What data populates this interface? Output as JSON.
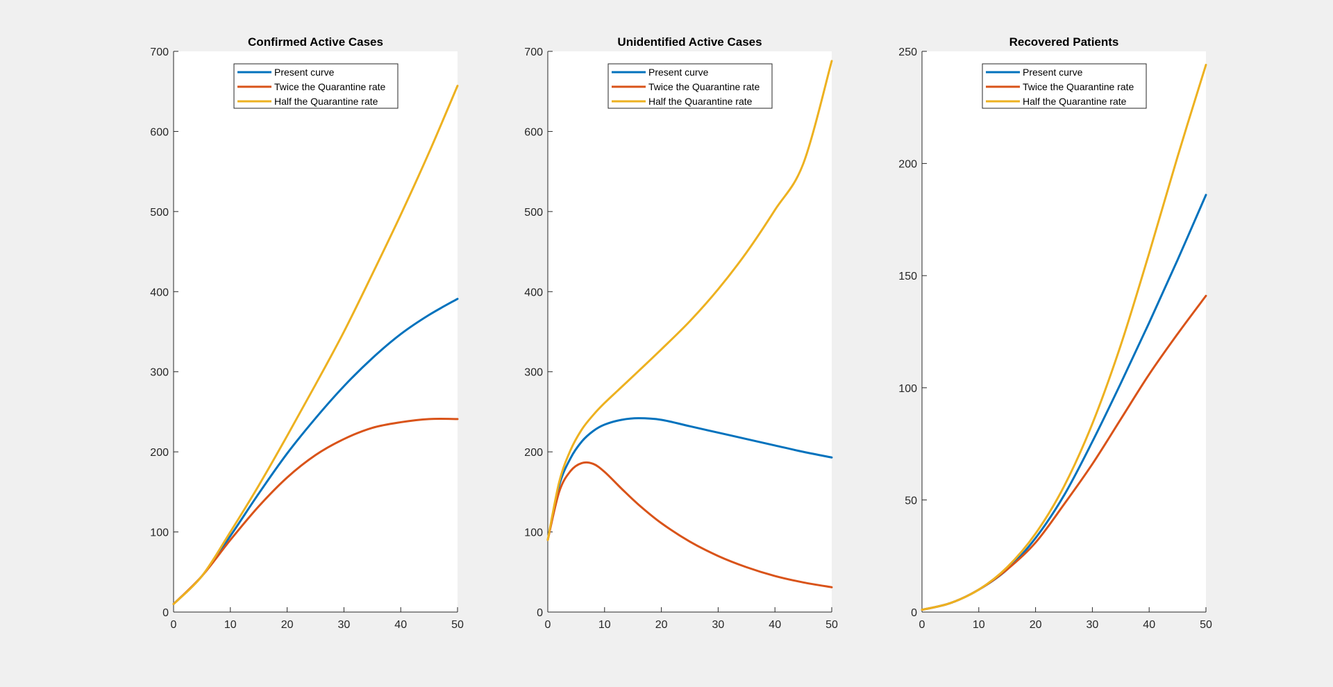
{
  "figure": {
    "background": "#f0f0f0"
  },
  "chart_data": [
    {
      "type": "line",
      "title": "Confirmed Active Cases",
      "xlabel": "",
      "ylabel": "",
      "xlim": [
        0,
        50
      ],
      "ylim": [
        0,
        700
      ],
      "xticks": [
        "0",
        "10",
        "20",
        "30",
        "40",
        "50"
      ],
      "yticks": [
        "0",
        "100",
        "200",
        "300",
        "400",
        "500",
        "600",
        "700"
      ],
      "grid": false,
      "legend": "top-center",
      "x": [
        0,
        5,
        10,
        15,
        20,
        25,
        30,
        35,
        40,
        45,
        50
      ],
      "series": [
        {
          "name": "Present curve",
          "color": "#0072BD",
          "values": [
            10,
            45,
            95,
            148,
            198,
            242,
            282,
            317,
            347,
            371,
            391
          ]
        },
        {
          "name": "Twice the Quarantine rate",
          "color": "#D95319",
          "values": [
            10,
            45,
            90,
            132,
            168,
            196,
            216,
            230,
            237,
            241,
            241
          ]
        },
        {
          "name": "Half the Quarantine rate",
          "color": "#EDB120",
          "values": [
            10,
            45,
            100,
            158,
            220,
            284,
            350,
            422,
            496,
            574,
            657
          ]
        }
      ]
    },
    {
      "type": "line",
      "title": "Unidentified Active Cases",
      "xlabel": "",
      "ylabel": "",
      "xlim": [
        0,
        50
      ],
      "ylim": [
        0,
        700
      ],
      "xticks": [
        "0",
        "10",
        "20",
        "30",
        "40",
        "50"
      ],
      "yticks": [
        "0",
        "100",
        "200",
        "300",
        "400",
        "500",
        "600",
        "700"
      ],
      "grid": false,
      "legend": "top-center",
      "x": [
        0,
        2,
        4,
        6,
        8,
        10,
        13,
        16,
        20,
        25,
        30,
        35,
        40,
        45,
        50
      ],
      "series": [
        {
          "name": "Present curve",
          "color": "#0072BD",
          "values": [
            90,
            158,
            192,
            213,
            226,
            234,
            240,
            242,
            240,
            232,
            224,
            216,
            208,
            200,
            193
          ]
        },
        {
          "name": "Twice the Quarantine rate",
          "color": "#D95319",
          "values": [
            90,
            150,
            176,
            186,
            185,
            175,
            154,
            134,
            111,
            88,
            70,
            56,
            45,
            37,
            31
          ]
        },
        {
          "name": "Half the Quarantine rate",
          "color": "#EDB120",
          "values": [
            90,
            162,
            202,
            228,
            246,
            261,
            281,
            301,
            328,
            363,
            403,
            449,
            502,
            560,
            688
          ]
        }
      ]
    },
    {
      "type": "line",
      "title": "Recovered Patients",
      "xlabel": "",
      "ylabel": "",
      "xlim": [
        0,
        50
      ],
      "ylim": [
        0,
        250
      ],
      "xticks": [
        "0",
        "10",
        "20",
        "30",
        "40",
        "50"
      ],
      "yticks": [
        "0",
        "50",
        "100",
        "150",
        "200",
        "250"
      ],
      "grid": false,
      "legend": "top-center",
      "x": [
        0,
        5,
        10,
        15,
        20,
        25,
        30,
        35,
        40,
        45,
        50
      ],
      "series": [
        {
          "name": "Present curve",
          "color": "#0072BD",
          "values": [
            1,
            4,
            10,
            19,
            33,
            52,
            76,
            102,
            129,
            157,
            186
          ]
        },
        {
          "name": "Twice the Quarantine rate",
          "color": "#D95319",
          "values": [
            1,
            4,
            10,
            19,
            31,
            48,
            66,
            86,
            106,
            124,
            141
          ]
        },
        {
          "name": "Half the Quarantine rate",
          "color": "#EDB120",
          "values": [
            1,
            4,
            10,
            20,
            35,
            56,
            84,
            119,
            160,
            203,
            244
          ]
        }
      ]
    }
  ]
}
